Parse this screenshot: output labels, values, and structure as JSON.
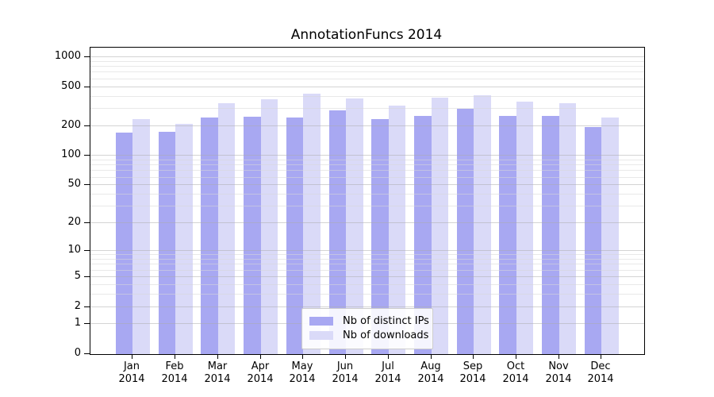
{
  "title": "AnnotationFuncs 2014",
  "legend": {
    "items": [
      {
        "label": "Nb of distinct IPs",
        "color": "#a8a8f2"
      },
      {
        "label": "Nb of downloads",
        "color": "#dadaf8"
      }
    ]
  },
  "chart_data": {
    "type": "bar",
    "title": "AnnotationFuncs 2014",
    "xlabel": "",
    "ylabel": "",
    "scale": "log1p",
    "grid": "on",
    "legend_position": "lower-center",
    "categories": [
      "Jan 2014",
      "Feb 2014",
      "Mar 2014",
      "Apr 2014",
      "May 2014",
      "Jun 2014",
      "Jul 2014",
      "Aug 2014",
      "Sep 2014",
      "Oct 2014",
      "Nov 2014",
      "Dec 2014"
    ],
    "series": [
      {
        "name": "Nb of distinct IPs",
        "color": "#a8a8f2",
        "values": [
          173,
          174,
          246,
          249,
          243,
          289,
          235,
          254,
          300,
          256,
          255,
          198
        ]
      },
      {
        "name": "Nb of downloads",
        "color": "#dadaf8",
        "values": [
          236,
          211,
          344,
          378,
          426,
          380,
          323,
          390,
          415,
          353,
          345,
          247
        ]
      }
    ],
    "y_major_ticks": [
      0,
      1,
      2,
      5,
      10,
      20,
      50,
      100,
      200,
      500,
      1000
    ],
    "y_minor_ticks": [
      3,
      4,
      6,
      7,
      8,
      9,
      30,
      40,
      60,
      70,
      80,
      90,
      300,
      400,
      600,
      700,
      800,
      900
    ],
    "ylim": [
      0,
      1250
    ]
  }
}
